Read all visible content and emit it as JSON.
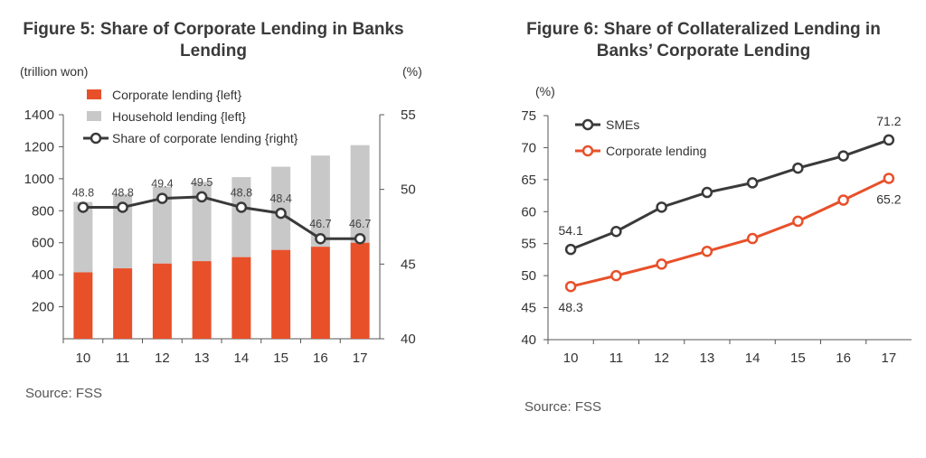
{
  "chart_data": [
    {
      "type": "bar",
      "title_line1": "Figure 5: Share of Corporate Lending in Banks",
      "title_line2": "Lending",
      "ylabel_left": "(trillion won)",
      "ylabel_right": "(%)",
      "categories": [
        "10",
        "11",
        "12",
        "13",
        "14",
        "15",
        "16",
        "17"
      ],
      "ylim_left": [
        0,
        1400
      ],
      "yticks_left": [
        "1400",
        "1200",
        "1000",
        "800",
        "600",
        "400",
        "200"
      ],
      "ylim_right": [
        40,
        55
      ],
      "yticks_right": [
        "55",
        "50",
        "45",
        "40"
      ],
      "series": [
        {
          "name": "Corporate lending {left}",
          "type": "bar",
          "axis": "left",
          "color": "#e8502a",
          "values": [
            415,
            440,
            470,
            485,
            510,
            555,
            575,
            600
          ]
        },
        {
          "name": "Household lending {left}",
          "type": "bar",
          "axis": "left",
          "color": "#c8c8c8",
          "values": [
            440,
            465,
            480,
            495,
            500,
            520,
            570,
            610
          ]
        },
        {
          "name": "Share of corporate lending {right}",
          "type": "line",
          "axis": "right",
          "color": "#3a3a3a",
          "values": [
            48.8,
            48.8,
            49.4,
            49.5,
            48.8,
            48.4,
            46.7,
            46.7
          ],
          "labels": [
            "48.8",
            "48.8",
            "49.4",
            "49.5",
            "48.8",
            "48.4",
            "46.7",
            "46.7"
          ]
        }
      ],
      "source": "Source: FSS"
    },
    {
      "type": "line",
      "title_line1": "Figure 6: Share of Collateralized Lending in",
      "title_line2": "Banks’ Corporate Lending",
      "ylabel": "(%)",
      "categories": [
        "10",
        "11",
        "12",
        "13",
        "14",
        "15",
        "16",
        "17"
      ],
      "ylim": [
        40,
        75
      ],
      "yticks": [
        "75",
        "70",
        "65",
        "60",
        "55",
        "50",
        "45",
        "40"
      ],
      "series": [
        {
          "name": "SMEs",
          "color": "#3a3a3a",
          "values": [
            54.1,
            56.9,
            60.7,
            63.0,
            64.5,
            66.8,
            68.7,
            71.2
          ],
          "first_label": "54.1",
          "last_label": "71.2"
        },
        {
          "name": "Corporate lending",
          "color": "#e8502a",
          "values": [
            48.3,
            50.0,
            51.8,
            53.8,
            55.8,
            58.5,
            61.8,
            65.2
          ],
          "first_label": "48.3",
          "last_label": "65.2"
        }
      ],
      "source": "Source: FSS"
    }
  ]
}
